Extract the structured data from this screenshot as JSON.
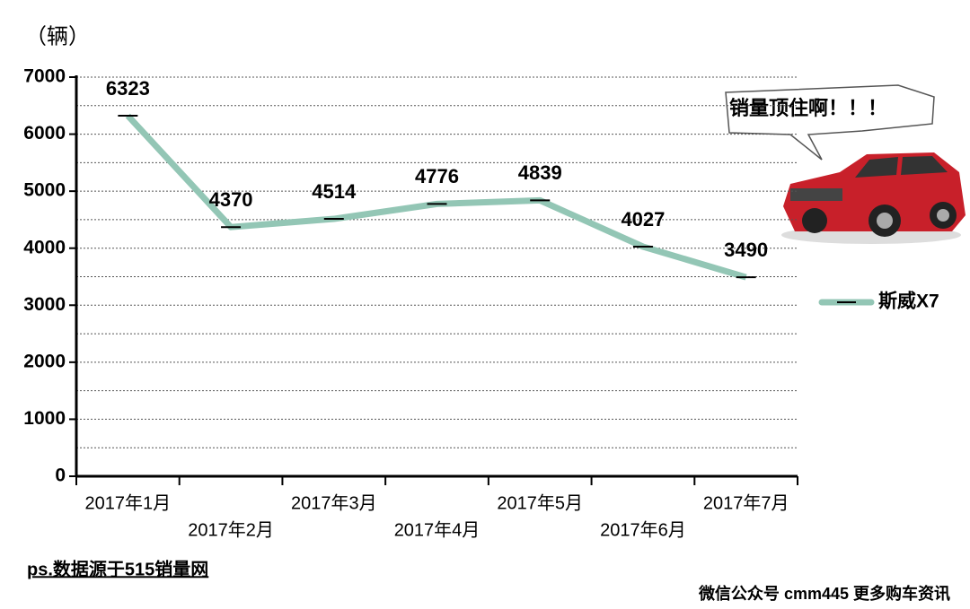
{
  "chart_data": {
    "type": "line",
    "y_label": "（辆）",
    "categories": [
      "2017年1月",
      "2017年2月",
      "2017年3月",
      "2017年4月",
      "2017年5月",
      "2017年6月",
      "2017年7月"
    ],
    "series": [
      {
        "name": "斯威X7",
        "color": "#93c6b5",
        "values": [
          6323,
          4370,
          4514,
          4776,
          4839,
          4027,
          3490
        ]
      }
    ],
    "ylim": [
      0,
      7000
    ],
    "yticks": [
      0,
      1000,
      2000,
      3000,
      4000,
      5000,
      6000,
      7000
    ],
    "grid": true,
    "legend": "right",
    "callout": "销量顶住啊！！！",
    "note": "ps.数据源于515销量网",
    "footer": "微信公众号 cmm445 更多购车资讯"
  }
}
